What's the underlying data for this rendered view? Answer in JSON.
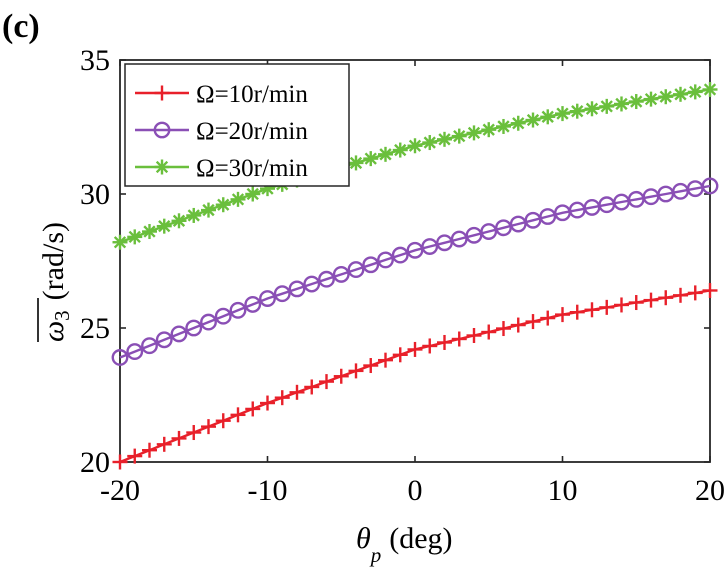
{
  "panel_label": "(c)",
  "chart_data": {
    "type": "line",
    "title": "",
    "xlabel": {
      "symbol": "θ",
      "subscript": "p",
      "unit": "(deg)"
    },
    "ylabel": {
      "symbol": "ω",
      "subscript": "3",
      "unit": "(rad/s)",
      "overline": true
    },
    "xlim": [
      -20,
      20
    ],
    "ylim": [
      20,
      35
    ],
    "xticks": [
      -20,
      -10,
      0,
      10,
      20
    ],
    "xtick_labels": [
      "-20",
      "-10",
      "0",
      "10",
      "20"
    ],
    "yticks": [
      20,
      25,
      30,
      35
    ],
    "ytick_labels": [
      "20",
      "25",
      "30",
      "35"
    ],
    "legend_position": "top-left",
    "x_points": {
      "start": -20,
      "end": 20,
      "count": 41
    },
    "series": [
      {
        "name": "Ω=10r/min",
        "marker": "plus",
        "color": "#e8202a",
        "anchors": [
          [
            -20,
            20.0
          ],
          [
            -10,
            22.2
          ],
          [
            0,
            24.2
          ],
          [
            10,
            25.5
          ],
          [
            20,
            26.4
          ]
        ]
      },
      {
        "name": "Ω=20r/min",
        "marker": "circle",
        "color": "#8a4fb5",
        "anchors": [
          [
            -20,
            23.9
          ],
          [
            -10,
            26.1
          ],
          [
            0,
            27.9
          ],
          [
            10,
            29.3
          ],
          [
            20,
            30.3
          ]
        ]
      },
      {
        "name": "Ω=30r/min",
        "marker": "asterisk",
        "color": "#6abf3c",
        "anchors": [
          [
            -20,
            28.2
          ],
          [
            -10,
            30.2
          ],
          [
            0,
            31.8
          ],
          [
            10,
            33.0
          ],
          [
            20,
            33.9
          ]
        ]
      }
    ]
  }
}
